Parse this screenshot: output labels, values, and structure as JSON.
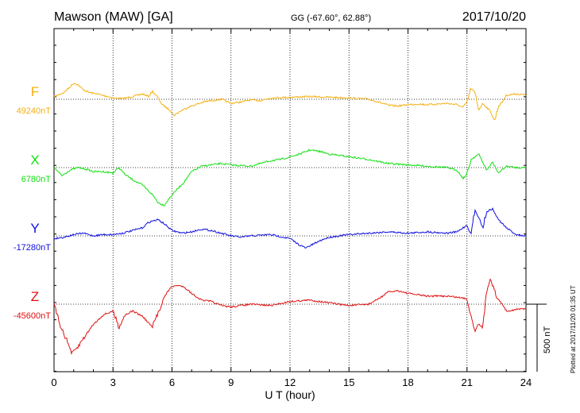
{
  "header": {
    "station": "Mawson (MAW)  [GA]",
    "coords": "GG (-67.60°,  62.88°)",
    "date": "2017/10/20"
  },
  "footer": {
    "plotted": "Plotted at 2017/11/20 01:35 UT"
  },
  "scale_label": "500 nT",
  "chart_data": {
    "type": "line",
    "xlabel": "U T (hour)",
    "xlim": [
      0,
      24
    ],
    "xticks": [
      "0",
      "3",
      "6",
      "9",
      "12",
      "15",
      "18",
      "21",
      "24"
    ],
    "grid": true,
    "series": [
      {
        "name": "F",
        "baseline_label": "49240nT",
        "color": "#f5b010",
        "x": [
          0,
          0.5,
          0.8,
          1.0,
          1.2,
          1.5,
          1.8,
          2.2,
          2.6,
          3.0,
          3.5,
          4.0,
          4.5,
          4.8,
          5.0,
          5.3,
          5.5,
          5.7,
          5.9,
          6.1,
          6.4,
          6.8,
          7.2,
          7.6,
          8.0,
          8.5,
          9.0,
          9.5,
          10.0,
          10.5,
          11.0,
          12.0,
          13.0,
          14.0,
          15.0,
          16.0,
          16.5,
          17.0,
          17.5,
          18.0,
          18.5,
          19.0,
          19.5,
          20.0,
          20.5,
          20.8,
          21.0,
          21.2,
          21.4,
          21.6,
          21.8,
          22.0,
          22.2,
          22.4,
          22.6,
          22.8,
          23.0,
          23.5,
          24.0
        ],
        "y": [
          20,
          50,
          90,
          120,
          110,
          70,
          50,
          40,
          25,
          10,
          5,
          20,
          40,
          20,
          60,
          10,
          -40,
          -60,
          -80,
          -120,
          -90,
          -60,
          -40,
          -20,
          -10,
          0,
          -30,
          -20,
          -5,
          -10,
          10,
          15,
          20,
          15,
          10,
          0,
          -20,
          -45,
          -50,
          -40,
          -35,
          -40,
          -35,
          -30,
          -40,
          -60,
          -20,
          80,
          50,
          -80,
          -30,
          -60,
          -90,
          -160,
          -50,
          -20,
          30,
          40,
          30
        ]
      },
      {
        "name": "X",
        "baseline_label": "6780nT",
        "color": "#10e010",
        "x": [
          0,
          0.4,
          0.8,
          1.2,
          1.6,
          2.0,
          2.5,
          3.0,
          3.3,
          3.6,
          4.0,
          4.5,
          5.0,
          5.3,
          5.6,
          5.9,
          6.2,
          6.6,
          7.0,
          7.5,
          8.0,
          8.5,
          9.0,
          10.0,
          11.0,
          11.5,
          12.0,
          12.5,
          13.0,
          13.5,
          14.0,
          14.5,
          15.0,
          16.0,
          17.0,
          18.0,
          19.0,
          20.0,
          20.5,
          20.8,
          21.0,
          21.2,
          21.4,
          21.6,
          21.8,
          22.0,
          22.3,
          22.6,
          23.0,
          23.5,
          24.0
        ],
        "y": [
          0,
          -60,
          -20,
          0,
          -10,
          -30,
          -30,
          -40,
          0,
          -50,
          -90,
          -130,
          -200,
          -260,
          -280,
          -220,
          -170,
          -110,
          -30,
          10,
          20,
          30,
          20,
          10,
          50,
          60,
          80,
          100,
          130,
          120,
          100,
          90,
          80,
          60,
          30,
          20,
          10,
          0,
          -20,
          -80,
          -50,
          60,
          80,
          100,
          40,
          -20,
          40,
          -40,
          10,
          0,
          0
        ]
      },
      {
        "name": "Y",
        "baseline_label": "-17280nT",
        "color": "#1010e0",
        "x": [
          0,
          0.5,
          1.0,
          1.5,
          2.0,
          2.5,
          3.0,
          3.5,
          4.0,
          4.5,
          4.8,
          5.0,
          5.3,
          5.6,
          6.0,
          6.5,
          7.0,
          7.5,
          8.0,
          8.5,
          9.0,
          9.5,
          10.0,
          11.0,
          12.0,
          12.4,
          12.8,
          13.2,
          13.6,
          14.0,
          15.0,
          16.0,
          17.0,
          18.0,
          19.0,
          20.0,
          20.5,
          21.0,
          21.2,
          21.4,
          21.6,
          21.8,
          22.0,
          22.3,
          22.6,
          23.0,
          23.5,
          24.0
        ],
        "y": [
          -20,
          -10,
          10,
          20,
          0,
          10,
          10,
          20,
          40,
          60,
          100,
          110,
          120,
          90,
          40,
          20,
          30,
          50,
          40,
          20,
          0,
          -10,
          0,
          10,
          -20,
          -60,
          -90,
          -60,
          -30,
          -10,
          10,
          20,
          30,
          20,
          30,
          20,
          30,
          80,
          10,
          190,
          140,
          60,
          180,
          200,
          120,
          60,
          10,
          0
        ]
      },
      {
        "name": "Z",
        "baseline_label": "-45600nT",
        "color": "#e01010",
        "x": [
          0,
          0.3,
          0.6,
          0.9,
          1.2,
          1.6,
          2.0,
          2.5,
          3.0,
          3.3,
          3.6,
          4.0,
          4.5,
          5.0,
          5.3,
          5.6,
          5.9,
          6.2,
          6.6,
          7.0,
          7.5,
          8.0,
          8.5,
          9.0,
          10.0,
          11.0,
          12.0,
          13.0,
          14.0,
          15.0,
          16.0,
          16.5,
          17.0,
          17.5,
          18.0,
          19.0,
          20.0,
          20.6,
          21.0,
          21.2,
          21.4,
          21.6,
          21.8,
          22.0,
          22.2,
          22.5,
          22.8,
          23.0,
          23.5,
          24.0
        ],
        "y": [
          0,
          -150,
          -250,
          -360,
          -320,
          -230,
          -150,
          -80,
          -50,
          -170,
          -80,
          -50,
          -90,
          -170,
          -60,
          50,
          120,
          140,
          130,
          80,
          30,
          20,
          -10,
          -20,
          0,
          -10,
          20,
          30,
          10,
          -10,
          0,
          40,
          90,
          100,
          80,
          60,
          60,
          50,
          40,
          -80,
          -200,
          -140,
          -180,
          100,
          200,
          50,
          0,
          -50,
          -40,
          -30
        ]
      }
    ]
  }
}
